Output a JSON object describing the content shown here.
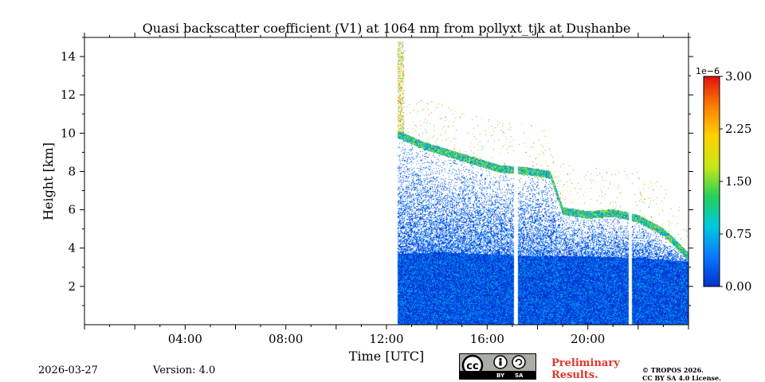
{
  "chart_data": {
    "type": "heatmap",
    "title": "Quasi backscatter coefficient (V1) at 1064 nm from pollyxt_tjk at Dushanbe",
    "xlabel": "Time [UTC]",
    "ylabel": "Height [km]",
    "x_range_hours": [
      0,
      24
    ],
    "y_range_km": [
      0,
      15
    ],
    "x_ticks": [
      {
        "hour": 4,
        "label": "04:00"
      },
      {
        "hour": 8,
        "label": "08:00"
      },
      {
        "hour": 12,
        "label": "12:00"
      },
      {
        "hour": 16,
        "label": "16:00"
      },
      {
        "hour": 20,
        "label": "20:00"
      }
    ],
    "y_ticks": [
      2,
      4,
      6,
      8,
      10,
      12,
      14
    ],
    "colorbar": {
      "label_exponent": "1e−6",
      "min": 0.0,
      "max": 3.0,
      "ticks": [
        "0.00",
        "0.75",
        "1.50",
        "2.25",
        "3.00"
      ],
      "colormap": [
        "#0033cc",
        "#0a78ff",
        "#00c8e0",
        "#26d05a",
        "#c8e619",
        "#ffd200",
        "#ff8000",
        "#e01010"
      ]
    },
    "data_start_hour": 12.45,
    "data_gaps_hours": [
      [
        17.05,
        17.2
      ],
      [
        21.6,
        21.75
      ]
    ],
    "low_layer_top_km": [
      {
        "hour": 12.45,
        "km": 3.7
      },
      {
        "hour": 14,
        "km": 3.8
      },
      {
        "hour": 16,
        "km": 3.7
      },
      {
        "hour": 18,
        "km": 3.6
      },
      {
        "hour": 20,
        "km": 3.6
      },
      {
        "hour": 22,
        "km": 3.5
      },
      {
        "hour": 24,
        "km": 3.3
      }
    ],
    "cloud_base_km": [
      {
        "hour": 12.45,
        "km": 9.9
      },
      {
        "hour": 13.5,
        "km": 9.3
      },
      {
        "hour": 14.5,
        "km": 8.9
      },
      {
        "hour": 15.5,
        "km": 8.5
      },
      {
        "hour": 16.5,
        "km": 8.1
      },
      {
        "hour": 17.5,
        "km": 8.0
      },
      {
        "hour": 18.5,
        "km": 7.8
      },
      {
        "hour": 19,
        "km": 5.9
      },
      {
        "hour": 20,
        "km": 5.7
      },
      {
        "hour": 21,
        "km": 5.8
      },
      {
        "hour": 22,
        "km": 5.5
      },
      {
        "hour": 23,
        "km": 4.8
      },
      {
        "hour": 24,
        "km": 3.5
      }
    ]
  },
  "footer": {
    "date": "2026-03-27",
    "version": "Version: 4.0",
    "cc_by": "BY",
    "cc_sa": "SA",
    "preliminary_line1": "Preliminary",
    "preliminary_line2": "Results.",
    "copyright_line1": "© TROPOS 2026.",
    "copyright_line2": "CC BY SA 4.0 License."
  }
}
